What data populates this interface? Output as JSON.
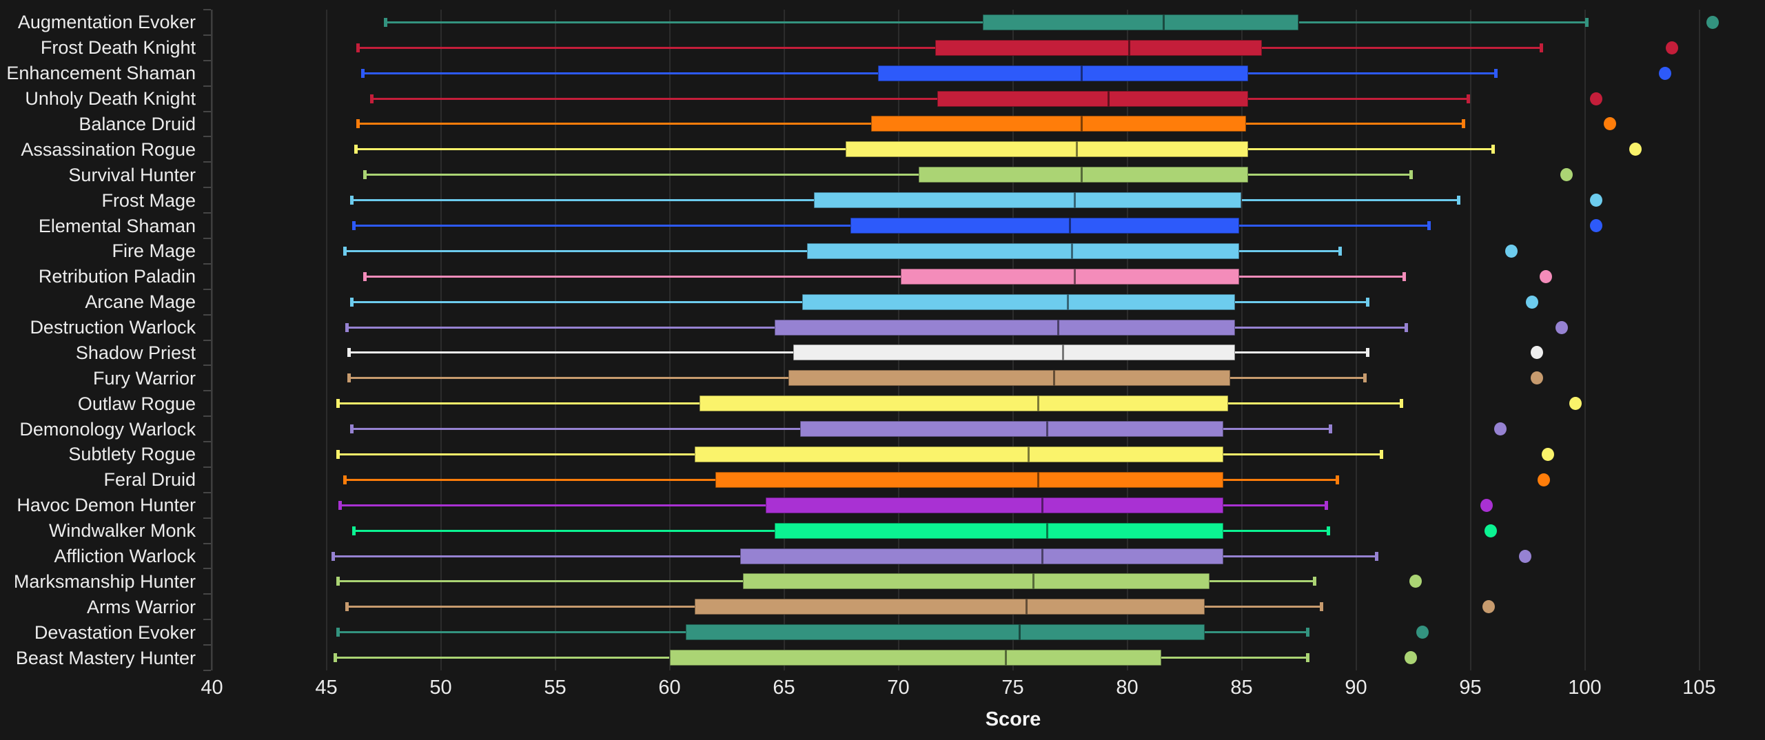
{
  "theme": {
    "background": "#171717",
    "gridline_color": "#2C2C2C",
    "axis_line_color": "#3E3E3E",
    "tick_mark_color": "#464646",
    "text_color": "#ECECEC"
  },
  "chart_data": {
    "type": "box",
    "orientation": "horizontal",
    "title": "",
    "xlabel": "Score",
    "ylabel": "",
    "xlim": [
      40,
      105
    ],
    "xticks": [
      40,
      45,
      50,
      55,
      60,
      65,
      70,
      75,
      80,
      85,
      90,
      95,
      100,
      105
    ],
    "grid": true,
    "legend": false,
    "series": [
      {
        "name": "Augmentation Evoker",
        "color": "#33937F",
        "whisker_low": 47.6,
        "q1": 73.7,
        "median": 81.6,
        "q3": 87.5,
        "whisker_high": 100.1,
        "outliers": [
          105.6
        ]
      },
      {
        "name": "Frost Death Knight",
        "color": "#C41E3A",
        "whisker_low": 46.4,
        "q1": 71.6,
        "median": 80.1,
        "q3": 85.9,
        "whisker_high": 98.1,
        "outliers": [
          103.8
        ]
      },
      {
        "name": "Enhancement Shaman",
        "color": "#2D5AFA",
        "whisker_low": 46.6,
        "q1": 69.1,
        "median": 78.0,
        "q3": 85.3,
        "whisker_high": 96.1,
        "outliers": [
          103.5
        ]
      },
      {
        "name": "Unholy Death Knight",
        "color": "#C41E3A",
        "whisker_low": 47.0,
        "q1": 71.7,
        "median": 79.2,
        "q3": 85.3,
        "whisker_high": 94.9,
        "outliers": [
          100.5
        ]
      },
      {
        "name": "Balance Druid",
        "color": "#FF7D0A",
        "whisker_low": 46.4,
        "q1": 68.8,
        "median": 78.0,
        "q3": 85.2,
        "whisker_high": 94.7,
        "outliers": [
          101.1
        ]
      },
      {
        "name": "Assassination Rogue",
        "color": "#FAF36B",
        "whisker_low": 46.3,
        "q1": 67.7,
        "median": 77.8,
        "q3": 85.3,
        "whisker_high": 96.0,
        "outliers": [
          102.2
        ]
      },
      {
        "name": "Survival Hunter",
        "color": "#ABD474",
        "whisker_low": 46.7,
        "q1": 70.9,
        "median": 78.0,
        "q3": 85.3,
        "whisker_high": 92.4,
        "outliers": [
          99.2
        ]
      },
      {
        "name": "Frost Mage",
        "color": "#6DCCEE",
        "whisker_low": 46.1,
        "q1": 66.3,
        "median": 77.7,
        "q3": 85.0,
        "whisker_high": 94.5,
        "outliers": [
          100.5
        ]
      },
      {
        "name": "Elemental Shaman",
        "color": "#2D5AFA",
        "whisker_low": 46.2,
        "q1": 67.9,
        "median": 77.5,
        "q3": 84.9,
        "whisker_high": 93.2,
        "outliers": [
          100.5
        ]
      },
      {
        "name": "Fire Mage",
        "color": "#6DCCEE",
        "whisker_low": 45.8,
        "q1": 66.0,
        "median": 77.6,
        "q3": 84.9,
        "whisker_high": 89.3,
        "outliers": [
          96.8
        ]
      },
      {
        "name": "Retribution Paladin",
        "color": "#F48CBA",
        "whisker_low": 46.7,
        "q1": 70.1,
        "median": 77.7,
        "q3": 84.9,
        "whisker_high": 92.1,
        "outliers": [
          98.3
        ]
      },
      {
        "name": "Arcane Mage",
        "color": "#6DCCEE",
        "whisker_low": 46.1,
        "q1": 65.8,
        "median": 77.4,
        "q3": 84.7,
        "whisker_high": 90.5,
        "outliers": [
          97.7
        ]
      },
      {
        "name": "Destruction Warlock",
        "color": "#9682D2",
        "whisker_low": 45.9,
        "q1": 64.6,
        "median": 77.0,
        "q3": 84.7,
        "whisker_high": 92.2,
        "outliers": [
          99.0
        ]
      },
      {
        "name": "Shadow Priest",
        "color": "#EFEFEF",
        "whisker_low": 46.0,
        "q1": 65.4,
        "median": 77.2,
        "q3": 84.7,
        "whisker_high": 90.5,
        "outliers": [
          97.9
        ]
      },
      {
        "name": "Fury Warrior",
        "color": "#C79B6E",
        "whisker_low": 46.0,
        "q1": 65.2,
        "median": 76.8,
        "q3": 84.5,
        "whisker_high": 90.4,
        "outliers": [
          97.9
        ]
      },
      {
        "name": "Outlaw Rogue",
        "color": "#FAF36B",
        "whisker_low": 45.5,
        "q1": 61.3,
        "median": 76.1,
        "q3": 84.4,
        "whisker_high": 92.0,
        "outliers": [
          99.6
        ]
      },
      {
        "name": "Demonology Warlock",
        "color": "#9682D2",
        "whisker_low": 46.1,
        "q1": 65.7,
        "median": 76.5,
        "q3": 84.2,
        "whisker_high": 88.9,
        "outliers": [
          96.3
        ]
      },
      {
        "name": "Subtlety Rogue",
        "color": "#FAF36B",
        "whisker_low": 45.5,
        "q1": 61.1,
        "median": 75.7,
        "q3": 84.2,
        "whisker_high": 91.1,
        "outliers": [
          98.4
        ]
      },
      {
        "name": "Feral Druid",
        "color": "#FF7D0A",
        "whisker_low": 45.8,
        "q1": 62.0,
        "median": 76.1,
        "q3": 84.2,
        "whisker_high": 89.2,
        "outliers": [
          98.2
        ]
      },
      {
        "name": "Havoc Demon Hunter",
        "color": "#A931D3",
        "whisker_low": 45.6,
        "q1": 64.2,
        "median": 76.3,
        "q3": 84.2,
        "whisker_high": 88.7,
        "outliers": [
          95.7
        ]
      },
      {
        "name": "Windwalker Monk",
        "color": "#0BF392",
        "whisker_low": 46.2,
        "q1": 64.6,
        "median": 76.5,
        "q3": 84.2,
        "whisker_high": 88.8,
        "outliers": [
          95.9
        ]
      },
      {
        "name": "Affliction Warlock",
        "color": "#9682D2",
        "whisker_low": 45.3,
        "q1": 63.1,
        "median": 76.3,
        "q3": 84.2,
        "whisker_high": 90.9,
        "outliers": [
          97.4
        ]
      },
      {
        "name": "Marksmanship Hunter",
        "color": "#ABD474",
        "whisker_low": 45.5,
        "q1": 63.2,
        "median": 75.9,
        "q3": 83.6,
        "whisker_high": 88.2,
        "outliers": [
          92.6
        ]
      },
      {
        "name": "Arms Warrior",
        "color": "#C79B6E",
        "whisker_low": 45.9,
        "q1": 61.1,
        "median": 75.6,
        "q3": 83.4,
        "whisker_high": 88.5,
        "outliers": [
          95.8
        ]
      },
      {
        "name": "Devastation Evoker",
        "color": "#33937F",
        "whisker_low": 45.5,
        "q1": 60.7,
        "median": 75.3,
        "q3": 83.4,
        "whisker_high": 87.9,
        "outliers": [
          92.9
        ]
      },
      {
        "name": "Beast Mastery Hunter",
        "color": "#ABD474",
        "whisker_low": 45.4,
        "q1": 60.0,
        "median": 74.7,
        "q3": 81.5,
        "whisker_high": 87.9,
        "outliers": [
          92.4
        ]
      }
    ]
  }
}
